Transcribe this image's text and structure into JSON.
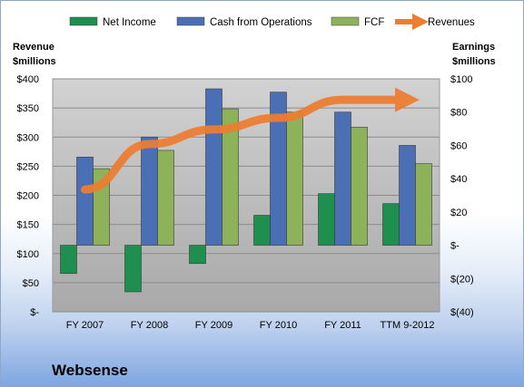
{
  "company": "Websense",
  "chart_data": {
    "type": "bar",
    "categories": [
      "FY 2007",
      "FY 2008",
      "FY 2009",
      "FY 2010",
      "FY 2011",
      "TTM 9-2012"
    ],
    "left_axis": {
      "label_line1": "Revenue",
      "label_line2": "$millions",
      "ylim": [
        0,
        400
      ],
      "ticks": [
        "$-",
        "$50",
        "$100",
        "$150",
        "$200",
        "$250",
        "$300",
        "$350",
        "$400"
      ]
    },
    "right_axis": {
      "label_line1": "Earnings",
      "label_line2": "$millions",
      "ylim": [
        -40,
        100
      ],
      "ticks": [
        "$(40)",
        "$(20)",
        "$-",
        "$20",
        "$40",
        "$60",
        "$80",
        "$100"
      ]
    },
    "series": [
      {
        "name": "Net Income",
        "axis": "right",
        "kind": "bar",
        "color": "#1f8f4f",
        "values": [
          -17,
          -28,
          -11,
          18,
          31,
          25
        ]
      },
      {
        "name": "Cash from Operations",
        "axis": "right",
        "kind": "bar",
        "color": "#4a6fb5",
        "values": [
          53,
          65,
          94,
          92,
          80,
          60
        ]
      },
      {
        "name": "FCF",
        "axis": "right",
        "kind": "bar",
        "color": "#8db25a",
        "values": [
          46,
          57,
          82,
          80,
          71,
          49
        ]
      },
      {
        "name": "Revenues",
        "axis": "left",
        "kind": "line",
        "color": "#ed7d31",
        "values": [
          210,
          288,
          313,
          333,
          364,
          364
        ]
      }
    ],
    "grid": true,
    "legend": "top"
  }
}
